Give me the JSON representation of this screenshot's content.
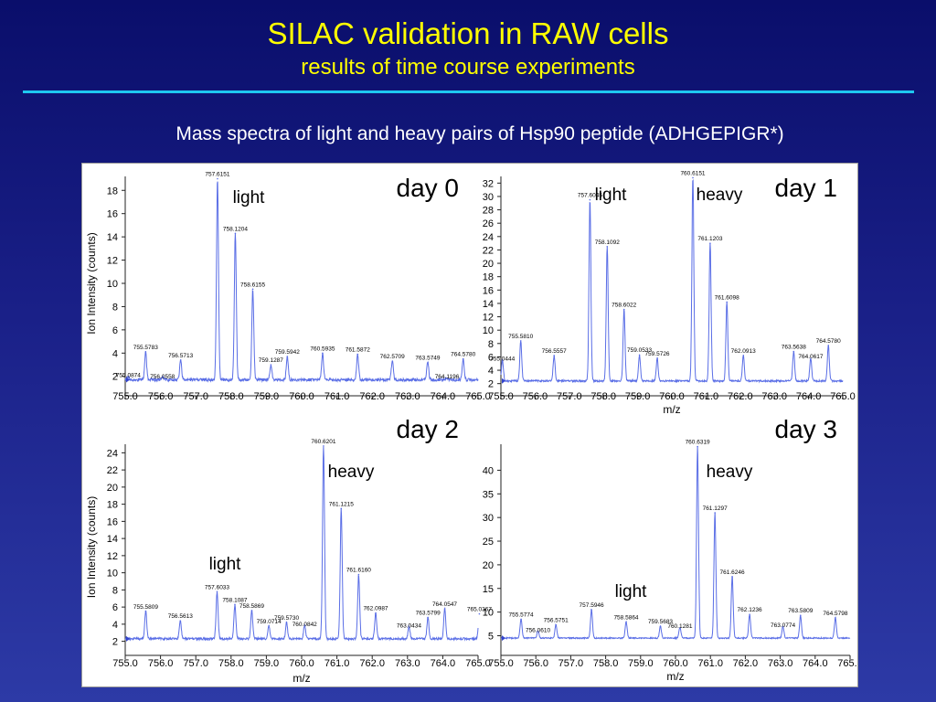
{
  "slide": {
    "title": "SILAC validation in RAW cells",
    "subtitle": "results of time course experiments",
    "description": "Mass spectra of light and heavy pairs of Hsp90 peptide (ADHGEPIGR*)"
  },
  "colors": {
    "title": "#ffff00",
    "rule": "#1ec8f0",
    "spectrum": "#5a6ee6",
    "background": "#1a2088"
  },
  "chart_data": [
    {
      "type": "line",
      "label": "day 0",
      "annotations": [
        "light"
      ],
      "xlabel": "",
      "ylabel": "Ion Intensity (counts)",
      "xlim": [
        755.0,
        765.0
      ],
      "ylim": [
        0.8,
        19.2
      ],
      "yticks": [
        2,
        4,
        6,
        8,
        10,
        12,
        14,
        16,
        18
      ],
      "xticks": [
        "755.0",
        "756.0",
        "757.0",
        "758.0",
        "759.0",
        "760.0",
        "761.0",
        "762.0",
        "763.0",
        "764.0",
        "765.0"
      ],
      "baseline": 1.7,
      "peaks": [
        {
          "x": 755.5783,
          "y": 4.1,
          "label": "755.5783"
        },
        {
          "x": 756.5713,
          "y": 3.4,
          "label": "756.5713"
        },
        {
          "x": 757.6151,
          "y": 19.0,
          "label": "757.6151"
        },
        {
          "x": 758.1204,
          "y": 14.3,
          "label": "758.1204"
        },
        {
          "x": 758.6155,
          "y": 9.5,
          "label": "758.6155"
        },
        {
          "x": 759.1287,
          "y": 3.0,
          "label": "759.1287"
        },
        {
          "x": 759.5942,
          "y": 3.7,
          "label": "759.5942"
        },
        {
          "x": 760.5935,
          "y": 4.0,
          "label": "760.5935"
        },
        {
          "x": 761.5872,
          "y": 3.9,
          "label": "761.5872"
        },
        {
          "x": 762.5709,
          "y": 3.3,
          "label": "762.5709"
        },
        {
          "x": 763.5749,
          "y": 3.2,
          "label": "763.5749"
        },
        {
          "x": 764.578,
          "y": 3.5,
          "label": "764.5780"
        }
      ],
      "minor_labels": [
        {
          "x": 755.0874,
          "y": 2.0,
          "label": "755.0874"
        },
        {
          "x": 756.0558,
          "y": 1.9,
          "label": "756.0558"
        },
        {
          "x": 764.1196,
          "y": 1.9,
          "label": "764.1196"
        }
      ]
    },
    {
      "type": "line",
      "label": "day 1",
      "annotations": [
        "light",
        "heavy"
      ],
      "xlabel": "m/z",
      "ylabel": "",
      "xlim": [
        755.0,
        765.0
      ],
      "ylim": [
        1.0,
        33.0
      ],
      "yticks": [
        2,
        4,
        6,
        8,
        10,
        12,
        14,
        16,
        18,
        20,
        22,
        24,
        26,
        28,
        30,
        32
      ],
      "xticks": [
        "755.0",
        "756.0",
        "757.0",
        "758.0",
        "759.0",
        "760.0",
        "761.0",
        "762.0",
        "763.0",
        "764.0",
        "765.0"
      ],
      "baseline": 2.4,
      "peaks": [
        {
          "x": 755.581,
          "y": 8.4,
          "label": "755.5810"
        },
        {
          "x": 756.5557,
          "y": 6.2,
          "label": "756.5557"
        },
        {
          "x": 757.6045,
          "y": 29.5,
          "label": "757.6045"
        },
        {
          "x": 758.1092,
          "y": 22.5,
          "label": "758.1092"
        },
        {
          "x": 758.6022,
          "y": 13.1,
          "label": "758.6022"
        },
        {
          "x": 759.0533,
          "y": 6.3,
          "label": "759.0533"
        },
        {
          "x": 759.5726,
          "y": 5.8,
          "label": "759.5726"
        },
        {
          "x": 760.6151,
          "y": 32.8,
          "label": "760.6151"
        },
        {
          "x": 761.1203,
          "y": 23.0,
          "label": "761.1203"
        },
        {
          "x": 761.6098,
          "y": 14.2,
          "label": "761.6098"
        },
        {
          "x": 762.0913,
          "y": 6.2,
          "label": "762.0913"
        },
        {
          "x": 763.5638,
          "y": 6.8,
          "label": "763.5638"
        },
        {
          "x": 764.578,
          "y": 7.7,
          "label": "764.5780"
        }
      ],
      "minor_labels": [
        {
          "x": 755.0444,
          "y": 5.6,
          "label": "755.0444"
        },
        {
          "x": 764.0617,
          "y": 5.9,
          "label": "764.0617"
        }
      ]
    },
    {
      "type": "line",
      "label": "day 2",
      "annotations": [
        "heavy",
        "light"
      ],
      "xlabel": "m/z",
      "ylabel": "Ion Intensity (counts)",
      "xlim": [
        755.0,
        765.0
      ],
      "ylim": [
        1.0,
        25.0
      ],
      "yticks": [
        2,
        4,
        6,
        8,
        10,
        12,
        14,
        16,
        18,
        20,
        22,
        24
      ],
      "xticks": [
        "755.0",
        "756.0",
        "757.0",
        "758.0",
        "759.0",
        "760.0",
        "761.0",
        "762.0",
        "763.0",
        "764.0",
        "765.0"
      ],
      "baseline": 2.3,
      "peaks": [
        {
          "x": 755.5809,
          "y": 5.5,
          "label": "755.5809"
        },
        {
          "x": 756.5613,
          "y": 4.4,
          "label": "756.5613"
        },
        {
          "x": 757.6033,
          "y": 7.8,
          "label": "757.6033"
        },
        {
          "x": 758.1087,
          "y": 6.3,
          "label": "758.1087"
        },
        {
          "x": 758.5869,
          "y": 5.6,
          "label": "758.5869"
        },
        {
          "x": 759.0714,
          "y": 3.8,
          "label": "759.0714"
        },
        {
          "x": 759.573,
          "y": 4.2,
          "label": "759.5730"
        },
        {
          "x": 760.6201,
          "y": 24.8,
          "label": "760.6201"
        },
        {
          "x": 761.1215,
          "y": 17.5,
          "label": "761.1215"
        },
        {
          "x": 761.616,
          "y": 9.8,
          "label": "761.6160"
        },
        {
          "x": 762.0987,
          "y": 5.3,
          "label": "762.0987"
        },
        {
          "x": 763.5799,
          "y": 4.8,
          "label": "763.5799"
        },
        {
          "x": 764.0547,
          "y": 5.8,
          "label": "764.0547"
        },
        {
          "x": 765.0367,
          "y": 5.2,
          "label": "765.0367"
        }
      ],
      "minor_labels": [
        {
          "x": 760.0842,
          "y": 3.9,
          "label": "760.0842"
        },
        {
          "x": 763.0434,
          "y": 3.7,
          "label": "763.0434"
        }
      ]
    },
    {
      "type": "line",
      "label": "day 3",
      "annotations": [
        "heavy",
        "light"
      ],
      "xlabel": "m/z",
      "ylabel": "",
      "xlim": [
        755.0,
        765.0
      ],
      "ylim": [
        2.0,
        45.5
      ],
      "yticks": [
        5,
        10,
        15,
        20,
        25,
        30,
        35,
        40
      ],
      "xticks": [
        "755.0",
        "756.0",
        "757.0",
        "758.0",
        "759.0",
        "760.0",
        "761.0",
        "762.0",
        "763.0",
        "764.0",
        "765.0"
      ],
      "baseline": 4.5,
      "peaks": [
        {
          "x": 755.5774,
          "y": 8.5,
          "label": "755.5774"
        },
        {
          "x": 756.5751,
          "y": 7.3,
          "label": "756.5751"
        },
        {
          "x": 757.5946,
          "y": 10.5,
          "label": "757.5946"
        },
        {
          "x": 758.5864,
          "y": 7.9,
          "label": "758.5864"
        },
        {
          "x": 759.5683,
          "y": 7.0,
          "label": "759.5683"
        },
        {
          "x": 760.6319,
          "y": 45.0,
          "label": "760.6319"
        },
        {
          "x": 761.1297,
          "y": 31.0,
          "label": "761.1297"
        },
        {
          "x": 761.6246,
          "y": 17.5,
          "label": "761.6246"
        },
        {
          "x": 762.1236,
          "y": 9.5,
          "label": "762.1236"
        },
        {
          "x": 763.5809,
          "y": 9.3,
          "label": "763.5809"
        },
        {
          "x": 764.5798,
          "y": 8.8,
          "label": "764.5798"
        }
      ],
      "minor_labels": [
        {
          "x": 756.061,
          "y": 6.0,
          "label": "756.0610"
        },
        {
          "x": 760.1281,
          "y": 6.8,
          "label": "760.1281"
        },
        {
          "x": 763.0774,
          "y": 7.0,
          "label": "763.0774"
        }
      ]
    }
  ]
}
